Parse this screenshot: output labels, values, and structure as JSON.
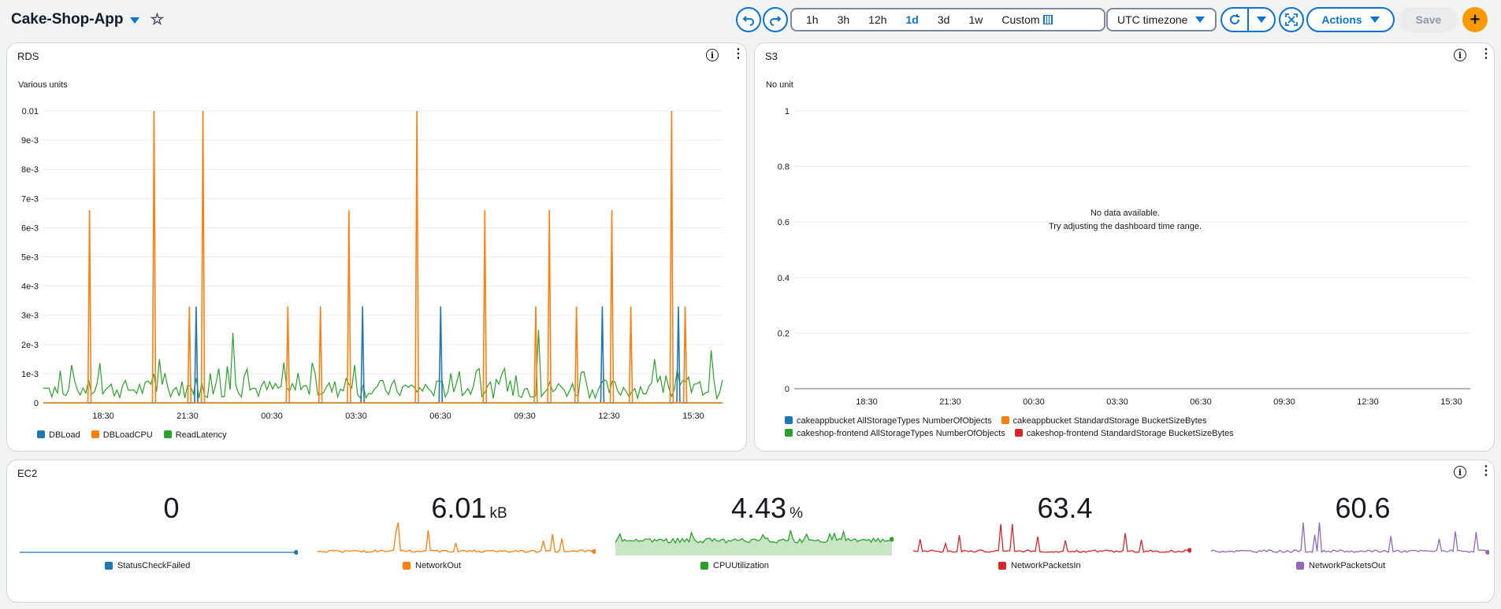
{
  "header": {
    "title": "Cake-Shop-App",
    "time_ranges": [
      "1h",
      "3h",
      "12h",
      "1d",
      "3d",
      "1w"
    ],
    "active_range": "1d",
    "custom_label": "Custom",
    "timezone_label": "UTC timezone",
    "actions_label": "Actions",
    "save_label": "Save",
    "add_icon": "plus-icon",
    "undo_icon": "undo-icon",
    "redo_icon": "redo-icon",
    "refresh_icon": "refresh-icon",
    "fullscreen_icon": "fullscreen-icon"
  },
  "colors": {
    "accent": "#0972d3",
    "blue": "#1f77b4",
    "orange": "#ff7f0e",
    "green": "#2ca02c",
    "red": "#d62728",
    "purple": "#9467bd",
    "orange_button": "#ff9900"
  },
  "rds": {
    "title": "RDS",
    "unit_label": "Various units",
    "legend": [
      "DBLoad",
      "DBLoadCPU",
      "ReadLatency"
    ]
  },
  "s3": {
    "title": "S3",
    "unit_label": "No unit",
    "no_data_line1": "No data available.",
    "no_data_line2": "Try adjusting the dashboard time range.",
    "legend": [
      "cakeappbucket AllStorageTypes NumberOfObjects",
      "cakeappbucket StandardStorage BucketSizeBytes",
      "cakeshop-frontend AllStorageTypes NumberOfObjects",
      "cakeshop-frontend StandardStorage BucketSizeBytes"
    ]
  },
  "ec2": {
    "title": "EC2",
    "stats": [
      {
        "value": "0",
        "unit": "",
        "label": "StatusCheckFailed",
        "color": "#1f77b4"
      },
      {
        "value": "6.01",
        "unit": "kB",
        "label": "NetworkOut",
        "color": "#ff7f0e"
      },
      {
        "value": "4.43",
        "unit": "%",
        "label": "CPUUtilization",
        "color": "#2ca02c"
      },
      {
        "value": "63.4",
        "unit": "",
        "label": "NetworkPacketsIn",
        "color": "#d62728"
      },
      {
        "value": "60.6",
        "unit": "",
        "label": "NetworkPacketsOut",
        "color": "#9467bd"
      }
    ]
  },
  "chart_data": [
    {
      "type": "line",
      "title": "RDS",
      "ylabel": "Various units",
      "x_ticks": [
        "18:30",
        "21:30",
        "00:30",
        "03:30",
        "06:30",
        "09:30",
        "12:30",
        "15:30"
      ],
      "y_ticks": [
        "0",
        "1e-3",
        "2e-3",
        "3e-3",
        "4e-3",
        "5e-3",
        "6e-3",
        "7e-3",
        "8e-3",
        "9e-3",
        "0.01"
      ],
      "ylim": [
        0,
        0.01
      ],
      "series": [
        {
          "name": "DBLoad",
          "color": "#1f77b4",
          "spikes": [
            [
              0.225,
              0.0033
            ],
            [
              0.47,
              0.0033
            ],
            [
              0.585,
              0.0033
            ],
            [
              0.823,
              0.0033
            ],
            [
              0.935,
              0.0033
            ]
          ]
        },
        {
          "name": "DBLoadCPU",
          "color": "#ff7f0e",
          "spikes": [
            [
              0.068,
              0.0066
            ],
            [
              0.163,
              0.01
            ],
            [
              0.215,
              0.0033
            ],
            [
              0.235,
              0.01
            ],
            [
              0.36,
              0.0033
            ],
            [
              0.408,
              0.0033
            ],
            [
              0.45,
              0.0066
            ],
            [
              0.55,
              0.01
            ],
            [
              0.65,
              0.0066
            ],
            [
              0.725,
              0.0033
            ],
            [
              0.745,
              0.0066
            ],
            [
              0.785,
              0.0033
            ],
            [
              0.837,
              0.0066
            ],
            [
              0.865,
              0.0033
            ],
            [
              0.925,
              0.01
            ],
            [
              0.945,
              0.0033
            ]
          ]
        },
        {
          "name": "ReadLatency",
          "color": "#2ca02c",
          "baseline": 0.0005,
          "peaks": [
            [
              0.28,
              0.0024
            ],
            [
              0.73,
              0.0025
            ],
            [
              0.985,
              0.0018
            ],
            [
              0.17,
              0.0015
            ],
            [
              0.04,
              0.0013
            ],
            [
              0.46,
              0.0013
            ],
            [
              0.9,
              0.0015
            ]
          ]
        }
      ]
    },
    {
      "type": "line",
      "title": "S3",
      "ylabel": "No unit",
      "x_ticks": [
        "18:30",
        "21:30",
        "00:30",
        "03:30",
        "06:30",
        "09:30",
        "12:30",
        "15:30"
      ],
      "y_ticks": [
        "0",
        "0.2",
        "0.4",
        "0.6",
        "0.8",
        "1"
      ],
      "ylim": [
        0,
        1
      ],
      "series": []
    }
  ]
}
